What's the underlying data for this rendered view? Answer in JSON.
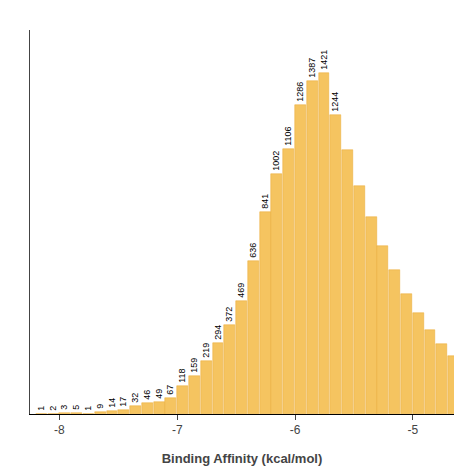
{
  "chart_data": {
    "type": "bar",
    "xlabel": "Binding Affinity (kcal/mol)",
    "x": [
      -8.2,
      -8.1,
      -8,
      -7.9,
      -7.8,
      -7.7,
      -7.6,
      -7.5,
      -7.4,
      -7.3,
      -7.2,
      -7.1,
      -7,
      -6.9,
      -6.8,
      -6.7,
      -6.6,
      -6.5,
      -6.4,
      -6.3,
      -6.2,
      -6.1,
      -6,
      -5.9,
      -5.8,
      -5.7,
      -5.6,
      -5.5,
      -5.4,
      -5.3,
      -5.2,
      -5.1,
      -5,
      -4.9,
      -4.8,
      -4.7
    ],
    "values": [
      1,
      2,
      3,
      5,
      1,
      9,
      14,
      17,
      32,
      46,
      49,
      67,
      118,
      159,
      219,
      294,
      372,
      469,
      636,
      841,
      1002,
      1106,
      1286,
      1387,
      1421,
      1244,
      1100,
      950,
      820,
      700,
      600,
      500,
      420,
      350,
      290,
      240
    ],
    "value_labels": [
      "1",
      "2",
      "3",
      "5",
      "1",
      "9",
      "14",
      "17",
      "32",
      "46",
      "49",
      "67",
      "118",
      "159",
      "219",
      "294",
      "372",
      "469",
      "636",
      "841",
      "1002",
      "1106",
      "1286",
      "1387",
      "1421",
      "1244",
      null,
      null,
      null,
      null,
      null,
      null,
      null,
      null,
      null,
      null
    ],
    "data_labels": true,
    "color": "#F5C460",
    "xlim": [
      -8.25,
      -4.65
    ],
    "xticks": [
      -8,
      -7,
      -6,
      -5
    ],
    "ylim": [
      0,
      1600
    ],
    "tick_labels": "x",
    "grid": false
  }
}
